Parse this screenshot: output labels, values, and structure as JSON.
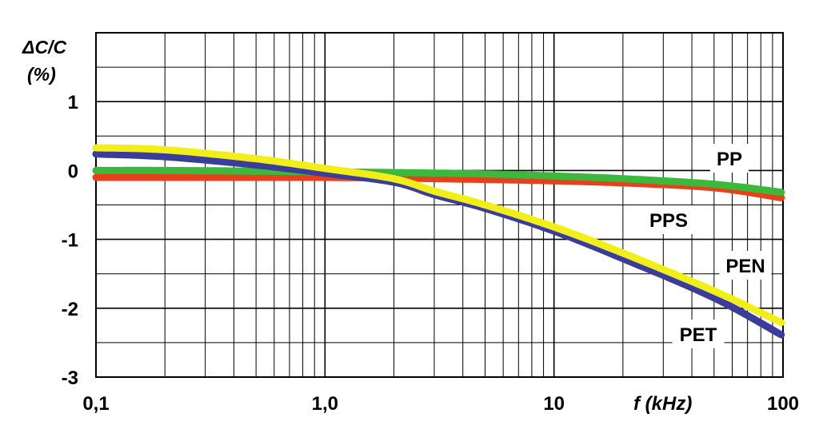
{
  "chart_data": {
    "type": "line",
    "xlabel": "f (kHz)",
    "ylabel": [
      "ΔC/C",
      "(%)"
    ],
    "x_scale": "log",
    "xlim": [
      0.1,
      100
    ],
    "ylim": [
      -3,
      2
    ],
    "grid": true,
    "x_ticks": [
      {
        "value": 0.1,
        "label": "0,1"
      },
      {
        "value": 1,
        "label": "1,0"
      },
      {
        "value": 10,
        "label": "10"
      },
      {
        "value": 100,
        "label": "100"
      }
    ],
    "y_ticks": [
      {
        "value": 1,
        "label": "1"
      },
      {
        "value": 0,
        "label": "0"
      },
      {
        "value": -1,
        "label": "-1"
      },
      {
        "value": -2,
        "label": "-2"
      },
      {
        "value": -3,
        "label": "-3"
      }
    ],
    "series": [
      {
        "name": "PP",
        "color": "#e8401a",
        "x": [
          0.1,
          0.2,
          0.5,
          1,
          2,
          5,
          10,
          20,
          50,
          100
        ],
        "y": [
          -0.1,
          -0.1,
          -0.1,
          -0.1,
          -0.11,
          -0.13,
          -0.15,
          -0.18,
          -0.25,
          -0.4
        ]
      },
      {
        "name": "PPS",
        "color": "#3cb83c",
        "x": [
          0.1,
          0.2,
          0.5,
          1,
          2,
          5,
          10,
          20,
          50,
          100
        ],
        "y": [
          0.0,
          0.0,
          -0.01,
          -0.02,
          -0.03,
          -0.05,
          -0.08,
          -0.12,
          -0.2,
          -0.32
        ]
      },
      {
        "name": "PEN",
        "color": "#f2ee1a",
        "x": [
          0.1,
          0.2,
          0.5,
          1,
          2,
          3,
          5,
          10,
          20,
          50,
          100
        ],
        "y": [
          0.33,
          0.3,
          0.17,
          0.03,
          -0.12,
          -0.3,
          -0.5,
          -0.82,
          -1.2,
          -1.75,
          -2.22
        ]
      },
      {
        "name": "PET",
        "color": "#3a3e9a",
        "x": [
          0.1,
          0.2,
          0.5,
          1,
          2,
          3,
          5,
          10,
          20,
          50,
          100
        ],
        "y": [
          0.24,
          0.2,
          0.08,
          -0.04,
          -0.17,
          -0.35,
          -0.55,
          -0.88,
          -1.28,
          -1.85,
          -2.4
        ]
      }
    ],
    "series_label_order": [
      "PP",
      "PPS",
      "PEN",
      "PET"
    ]
  }
}
